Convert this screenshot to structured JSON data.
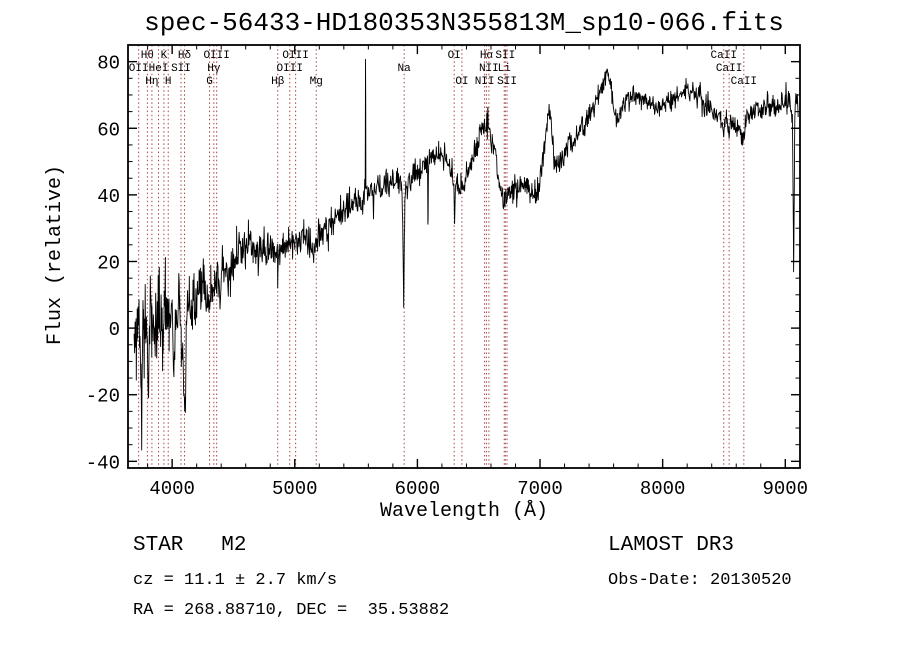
{
  "colors": {
    "background": "#ffffff",
    "spectrum": "#000000",
    "marker_line": "#aa4444",
    "text": "#000000"
  },
  "footer": {
    "class_label": "STAR   M2",
    "survey": "LAMOST DR3",
    "cz": "cz = 11.1 ± 2.7 km/s",
    "obs_date": "Obs-Date: 20130520",
    "ra_dec": "RA = 268.88710, DEC =  35.53882"
  },
  "chart_data": {
    "type": "line",
    "title": "spec-56433-HD180353N355813M_sp10-066.fits",
    "xlabel": "Wavelength (Å)",
    "ylabel": "Flux (relative)",
    "xlim": [
      3640,
      9120
    ],
    "ylim": [
      -42,
      85
    ],
    "x_major_ticks": [
      4000,
      5000,
      6000,
      7000,
      8000,
      9000
    ],
    "x_minor_step": 200,
    "y_major_ticks": [
      -40,
      -20,
      0,
      20,
      40,
      60,
      80
    ],
    "y_minor_step": 5,
    "grid": false,
    "legend": false,
    "sample_step": 4,
    "noise_seed": 20130520,
    "noise_profile": [
      [
        3690,
        7
      ],
      [
        3900,
        6
      ],
      [
        4100,
        5
      ],
      [
        4300,
        4
      ],
      [
        4600,
        3
      ],
      [
        5000,
        2.5
      ],
      [
        5400,
        2.2
      ],
      [
        5800,
        2
      ],
      [
        6300,
        1.8
      ],
      [
        7000,
        1.9
      ],
      [
        7600,
        1.6
      ],
      [
        8300,
        1.6
      ],
      [
        9000,
        1.8
      ],
      [
        9105,
        2
      ]
    ],
    "series_anchors": [
      [
        3690,
        -2
      ],
      [
        3700,
        0
      ],
      [
        3708,
        -6
      ],
      [
        3715,
        4
      ],
      [
        3722,
        -10
      ],
      [
        3730,
        2
      ],
      [
        3738,
        -4
      ],
      [
        3745,
        -18
      ],
      [
        3752,
        -26
      ],
      [
        3758,
        -2
      ],
      [
        3765,
        6
      ],
      [
        3772,
        -8
      ],
      [
        3780,
        4
      ],
      [
        3790,
        -2
      ],
      [
        3800,
        -6
      ],
      [
        3808,
        -19
      ],
      [
        3815,
        3
      ],
      [
        3825,
        7
      ],
      [
        3835,
        2
      ],
      [
        3845,
        6
      ],
      [
        3855,
        -3
      ],
      [
        3865,
        5
      ],
      [
        3875,
        -12
      ],
      [
        3885,
        4
      ],
      [
        3895,
        8
      ],
      [
        3905,
        1
      ],
      [
        3915,
        7
      ],
      [
        3925,
        -4
      ],
      [
        3935,
        5
      ],
      [
        3945,
        2
      ],
      [
        3955,
        8
      ],
      [
        3965,
        3
      ],
      [
        3975,
        6
      ],
      [
        3985,
        -2
      ],
      [
        4000,
        6
      ],
      [
        4015,
        -13
      ],
      [
        4030,
        8
      ],
      [
        4045,
        3
      ],
      [
        4060,
        7
      ],
      [
        4075,
        -4
      ],
      [
        4090,
        -15
      ],
      [
        4100,
        -22
      ],
      [
        4108,
        -27
      ],
      [
        4115,
        4
      ],
      [
        4125,
        9
      ],
      [
        4140,
        11
      ],
      [
        4155,
        7
      ],
      [
        4170,
        10
      ],
      [
        4185,
        6
      ],
      [
        4200,
        11
      ],
      [
        4220,
        13
      ],
      [
        4240,
        9
      ],
      [
        4260,
        13
      ],
      [
        4280,
        11
      ],
      [
        4300,
        9
      ],
      [
        4315,
        13
      ],
      [
        4330,
        11
      ],
      [
        4345,
        13
      ],
      [
        4360,
        15
      ],
      [
        4375,
        16
      ],
      [
        4390,
        14
      ],
      [
        4410,
        16
      ],
      [
        4430,
        15
      ],
      [
        4450,
        17
      ],
      [
        4475,
        18
      ],
      [
        4500,
        19
      ],
      [
        4525,
        21
      ],
      [
        4550,
        21
      ],
      [
        4575,
        23
      ],
      [
        4600,
        25
      ],
      [
        4620,
        26
      ],
      [
        4640,
        25
      ],
      [
        4660,
        24
      ],
      [
        4680,
        23
      ],
      [
        4700,
        22
      ],
      [
        4725,
        23
      ],
      [
        4750,
        24
      ],
      [
        4775,
        25
      ],
      [
        4800,
        24
      ],
      [
        4825,
        23
      ],
      [
        4850,
        23
      ],
      [
        4861,
        22
      ],
      [
        4875,
        24
      ],
      [
        4900,
        25
      ],
      [
        4925,
        26
      ],
      [
        4950,
        25
      ],
      [
        4975,
        26
      ],
      [
        5000,
        27
      ],
      [
        5025,
        26
      ],
      [
        5050,
        27
      ],
      [
        5075,
        28
      ],
      [
        5100,
        27
      ],
      [
        5125,
        26
      ],
      [
        5150,
        25
      ],
      [
        5170,
        24
      ],
      [
        5185,
        25
      ],
      [
        5200,
        27
      ],
      [
        5225,
        28
      ],
      [
        5250,
        30
      ],
      [
        5275,
        31
      ],
      [
        5300,
        32
      ],
      [
        5325,
        33
      ],
      [
        5350,
        34
      ],
      [
        5375,
        35
      ],
      [
        5400,
        36
      ],
      [
        5425,
        37
      ],
      [
        5450,
        37
      ],
      [
        5475,
        38
      ],
      [
        5500,
        38
      ],
      [
        5525,
        38
      ],
      [
        5550,
        39
      ],
      [
        5565,
        40
      ],
      [
        5574,
        44
      ],
      [
        5577,
        83
      ],
      [
        5580,
        44
      ],
      [
        5590,
        40
      ],
      [
        5610,
        40
      ],
      [
        5630,
        41
      ],
      [
        5650,
        41
      ],
      [
        5670,
        42
      ],
      [
        5690,
        42
      ],
      [
        5710,
        42
      ],
      [
        5730,
        43
      ],
      [
        5750,
        43
      ],
      [
        5770,
        43
      ],
      [
        5790,
        44
      ],
      [
        5810,
        44
      ],
      [
        5830,
        44
      ],
      [
        5850,
        44
      ],
      [
        5868,
        43
      ],
      [
        5880,
        32
      ],
      [
        5888,
        8
      ],
      [
        5896,
        32
      ],
      [
        5905,
        43
      ],
      [
        5930,
        44
      ],
      [
        5950,
        45
      ],
      [
        5975,
        46
      ],
      [
        6000,
        47
      ],
      [
        6025,
        48
      ],
      [
        6050,
        49
      ],
      [
        6075,
        50
      ],
      [
        6082,
        49
      ],
      [
        6087,
        30
      ],
      [
        6092,
        50
      ],
      [
        6100,
        51
      ],
      [
        6125,
        52
      ],
      [
        6150,
        52
      ],
      [
        6175,
        53
      ],
      [
        6200,
        53
      ],
      [
        6220,
        52
      ],
      [
        6240,
        51
      ],
      [
        6260,
        49
      ],
      [
        6280,
        46
      ],
      [
        6295,
        44
      ],
      [
        6303,
        31
      ],
      [
        6310,
        43
      ],
      [
        6325,
        43
      ],
      [
        6340,
        42
      ],
      [
        6355,
        42
      ],
      [
        6370,
        43
      ],
      [
        6385,
        44
      ],
      [
        6400,
        46
      ],
      [
        6415,
        47
      ],
      [
        6430,
        49
      ],
      [
        6445,
        51
      ],
      [
        6460,
        52
      ],
      [
        6475,
        54
      ],
      [
        6490,
        55
      ],
      [
        6505,
        57
      ],
      [
        6520,
        58
      ],
      [
        6535,
        60
      ],
      [
        6550,
        61
      ],
      [
        6562,
        62
      ],
      [
        6575,
        61
      ],
      [
        6590,
        59
      ],
      [
        6605,
        57
      ],
      [
        6620,
        54
      ],
      [
        6635,
        51
      ],
      [
        6650,
        47
      ],
      [
        6665,
        44
      ],
      [
        6680,
        41
      ],
      [
        6695,
        39
      ],
      [
        6710,
        39
      ],
      [
        6725,
        40
      ],
      [
        6740,
        41
      ],
      [
        6755,
        40
      ],
      [
        6770,
        41
      ],
      [
        6785,
        42
      ],
      [
        6800,
        43
      ],
      [
        6815,
        42
      ],
      [
        6830,
        43
      ],
      [
        6845,
        44
      ],
      [
        6860,
        42
      ],
      [
        6875,
        44
      ],
      [
        6890,
        45
      ],
      [
        6905,
        43
      ],
      [
        6920,
        41
      ],
      [
        6935,
        40
      ],
      [
        6950,
        41
      ],
      [
        6965,
        40
      ],
      [
        6980,
        41
      ],
      [
        6995,
        43
      ],
      [
        7010,
        46
      ],
      [
        7025,
        51
      ],
      [
        7040,
        56
      ],
      [
        7055,
        61
      ],
      [
        7070,
        64
      ],
      [
        7082,
        65
      ],
      [
        7095,
        60
      ],
      [
        7108,
        54
      ],
      [
        7120,
        50
      ],
      [
        7135,
        48
      ],
      [
        7150,
        49
      ],
      [
        7165,
        50
      ],
      [
        7180,
        51
      ],
      [
        7200,
        52
      ],
      [
        7225,
        53
      ],
      [
        7250,
        55
      ],
      [
        7275,
        56
      ],
      [
        7300,
        57
      ],
      [
        7325,
        59
      ],
      [
        7350,
        60
      ],
      [
        7375,
        62
      ],
      [
        7400,
        64
      ],
      [
        7425,
        66
      ],
      [
        7450,
        68
      ],
      [
        7475,
        70
      ],
      [
        7500,
        72
      ],
      [
        7520,
        74
      ],
      [
        7540,
        77
      ],
      [
        7555,
        78
      ],
      [
        7570,
        74
      ],
      [
        7585,
        70
      ],
      [
        7600,
        66
      ],
      [
        7615,
        63
      ],
      [
        7630,
        62
      ],
      [
        7645,
        64
      ],
      [
        7660,
        66
      ],
      [
        7675,
        67
      ],
      [
        7690,
        68
      ],
      [
        7710,
        69
      ],
      [
        7730,
        69
      ],
      [
        7750,
        70
      ],
      [
        7775,
        70
      ],
      [
        7800,
        70
      ],
      [
        7825,
        69
      ],
      [
        7850,
        69
      ],
      [
        7875,
        68
      ],
      [
        7900,
        68
      ],
      [
        7925,
        67
      ],
      [
        7950,
        66
      ],
      [
        7975,
        66
      ],
      [
        8000,
        67
      ],
      [
        8025,
        67
      ],
      [
        8050,
        68
      ],
      [
        8075,
        68
      ],
      [
        8100,
        69
      ],
      [
        8125,
        70
      ],
      [
        8150,
        70
      ],
      [
        8175,
        71
      ],
      [
        8200,
        72
      ],
      [
        8225,
        71
      ],
      [
        8250,
        71
      ],
      [
        8275,
        70
      ],
      [
        8300,
        70
      ],
      [
        8325,
        68
      ],
      [
        8350,
        67
      ],
      [
        8375,
        66
      ],
      [
        8400,
        65
      ],
      [
        8425,
        64
      ],
      [
        8450,
        63
      ],
      [
        8475,
        62
      ],
      [
        8490,
        60
      ],
      [
        8498,
        57
      ],
      [
        8508,
        61
      ],
      [
        8520,
        63
      ],
      [
        8535,
        60
      ],
      [
        8542,
        57
      ],
      [
        8552,
        61
      ],
      [
        8565,
        63
      ],
      [
        8580,
        62
      ],
      [
        8600,
        61
      ],
      [
        8620,
        60
      ],
      [
        8640,
        59
      ],
      [
        8655,
        57
      ],
      [
        8662,
        55
      ],
      [
        8672,
        60
      ],
      [
        8685,
        62
      ],
      [
        8700,
        63
      ],
      [
        8720,
        64
      ],
      [
        8740,
        65
      ],
      [
        8760,
        65
      ],
      [
        8780,
        66
      ],
      [
        8800,
        65
      ],
      [
        8820,
        66
      ],
      [
        8840,
        66
      ],
      [
        8860,
        67
      ],
      [
        8880,
        66
      ],
      [
        8900,
        67
      ],
      [
        8920,
        66
      ],
      [
        8940,
        67
      ],
      [
        8960,
        66
      ],
      [
        8980,
        67
      ],
      [
        9000,
        68
      ],
      [
        9015,
        67
      ],
      [
        9030,
        68
      ],
      [
        9045,
        67
      ],
      [
        9058,
        64
      ],
      [
        9068,
        18
      ],
      [
        9076,
        60
      ],
      [
        9085,
        67
      ],
      [
        9095,
        68
      ],
      [
        9105,
        67
      ]
    ],
    "line_markers": [
      {
        "label": "OII",
        "wavelength": 3727,
        "row": 1
      },
      {
        "label": "Hθ",
        "wavelength": 3798,
        "row": 0
      },
      {
        "label": "Hη",
        "wavelength": 3835,
        "row": 2
      },
      {
        "label": "HeI",
        "wavelength": 3889,
        "row": 1
      },
      {
        "label": "K",
        "wavelength": 3933,
        "row": 0
      },
      {
        "label": "H",
        "wavelength": 3968,
        "row": 2
      },
      {
        "label": "SII",
        "wavelength": 4072,
        "row": 1
      },
      {
        "label": "Hδ",
        "wavelength": 4101,
        "row": 0
      },
      {
        "label": "G",
        "wavelength": 4305,
        "row": 2
      },
      {
        "label": "Hγ",
        "wavelength": 4340,
        "row": 1
      },
      {
        "label": "OIII",
        "wavelength": 4363,
        "row": 0
      },
      {
        "label": "Hβ",
        "wavelength": 4861,
        "row": 2
      },
      {
        "label": "OIII",
        "wavelength": 4959,
        "row": 1
      },
      {
        "label": "OIII",
        "wavelength": 5007,
        "row": 0
      },
      {
        "label": "Mg",
        "wavelength": 5175,
        "row": 2
      },
      {
        "label": "Na",
        "wavelength": 5892,
        "row": 1
      },
      {
        "label": "OI",
        "wavelength": 6300,
        "row": 0
      },
      {
        "label": "OI",
        "wavelength": 6363,
        "row": 2
      },
      {
        "label": "NII",
        "wavelength": 6548,
        "row": 2
      },
      {
        "label": "Hα",
        "wavelength": 6563,
        "row": 0
      },
      {
        "label": "NII",
        "wavelength": 6583,
        "row": 1
      },
      {
        "label": "Li",
        "wavelength": 6708,
        "row": 1
      },
      {
        "label": "SII",
        "wavelength": 6717,
        "row": 0
      },
      {
        "label": "SII",
        "wavelength": 6731,
        "row": 2
      },
      {
        "label": "CaII",
        "wavelength": 8498,
        "row": 0
      },
      {
        "label": "CaII",
        "wavelength": 8542,
        "row": 1
      },
      {
        "label": "CaII",
        "wavelength": 8662,
        "row": 2
      }
    ]
  }
}
